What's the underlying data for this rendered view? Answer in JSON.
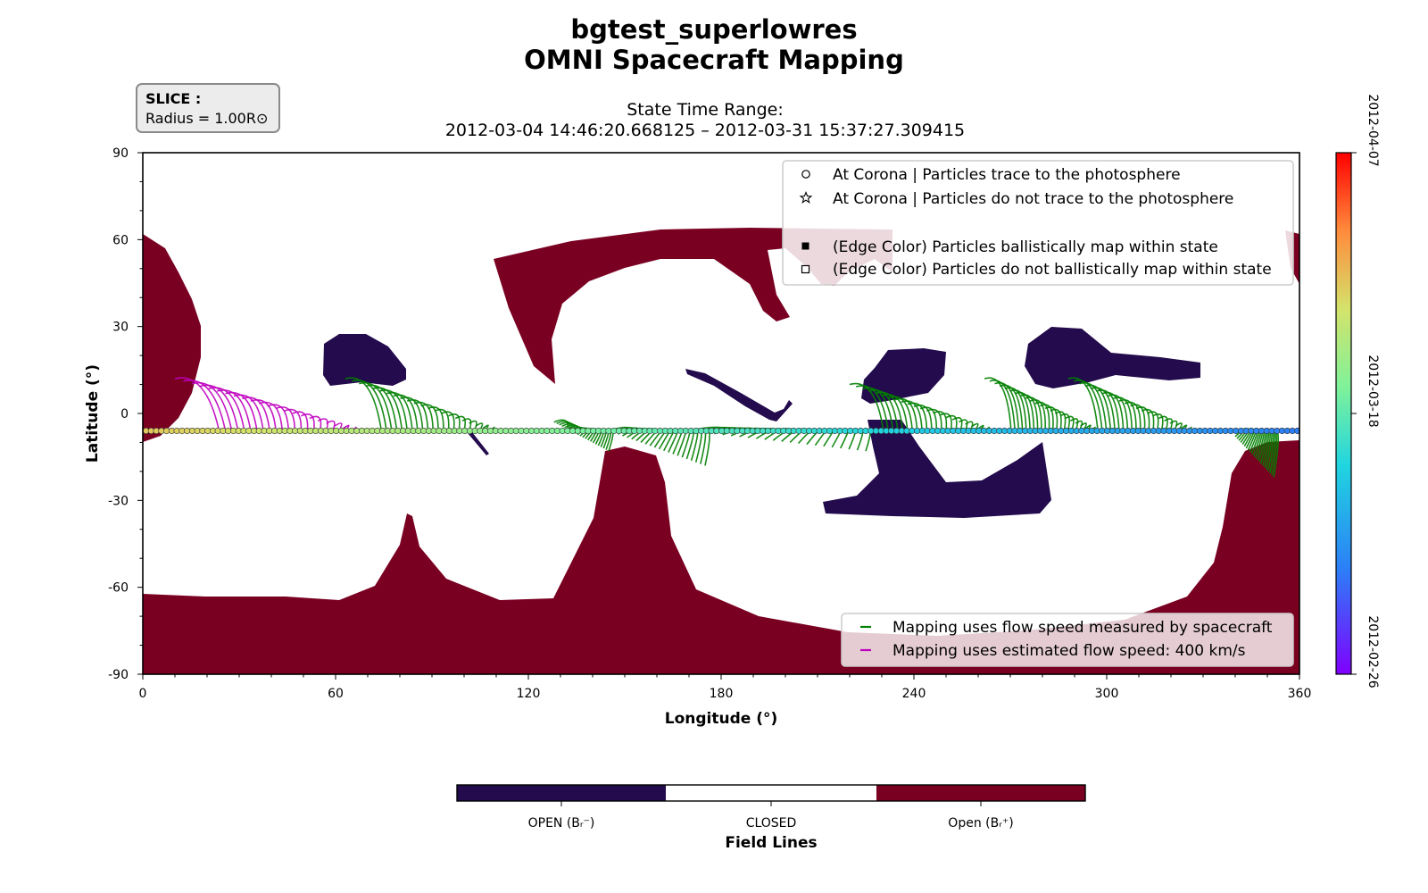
{
  "title_line1": "bgtest_superlowres",
  "title_line2": "OMNI Spacecraft Mapping",
  "subtitle_line1": "State Time Range:",
  "subtitle_line2": "2012-03-04 14:46:20.668125 – 2012-03-31 15:37:27.309415",
  "slice_box": {
    "heading": "SLICE :",
    "text": "Radius = 1.00R⊙"
  },
  "colors": {
    "open_negative": "#230b4d",
    "closed": "#ffffff",
    "open_positive": "#7a0022",
    "mapping_spacecraft": "#008000",
    "mapping_estimated": "#bf00bf"
  },
  "chart_data": {
    "type": "scatter",
    "xlabel": "Longitude (°)",
    "ylabel": "Latitude (°)",
    "xlim": [
      0,
      360
    ],
    "ylim": [
      -90,
      90
    ],
    "xticks": [
      0,
      60,
      120,
      180,
      240,
      300,
      360
    ],
    "yticks": [
      90,
      60,
      30,
      0,
      -30,
      -60,
      -90
    ],
    "grid": false,
    "marker_legend_position": "upper-right",
    "marker_legend": [
      {
        "marker": "circle",
        "label": "At Corona | Particles trace to the photosphere"
      },
      {
        "marker": "star",
        "label": "At Corona | Particles do not trace to the photosphere"
      },
      {
        "marker": "filled-square",
        "label": "(Edge Color) Particles ballistically map within state"
      },
      {
        "marker": "open-square",
        "label": "(Edge Color) Particles do not ballistically map within state"
      }
    ],
    "line_legend_position": "lower-right",
    "line_legend": [
      {
        "color": "#008000",
        "label": "Mapping uses flow speed measured by spacecraft"
      },
      {
        "color": "#bf00bf",
        "label": "Mapping uses estimated flow speed: 400 km/s"
      }
    ],
    "time_colorbar": {
      "colormap": "rainbow",
      "tick_labels": [
        "2012-04-07",
        "2012-03-18",
        "2012-02-26"
      ]
    },
    "field_lines_colorbar": {
      "label": "Field Lines",
      "categories": [
        "OPEN (Bᵣ⁻)",
        "CLOSED",
        "Open (Bᵣ⁺)"
      ]
    },
    "spacecraft_track": {
      "latitude": -6,
      "longitude_start": 0,
      "longitude_end": 360
    },
    "mapping_groups": [
      {
        "name": "spacecraft",
        "footpoint_lon": [
          63,
          108
        ],
        "footpoint_lat": [
          12,
          -6
        ]
      },
      {
        "name": "spacecraft",
        "footpoint_lon": [
          128,
          145
        ],
        "footpoint_lat": [
          -3,
          -13
        ]
      },
      {
        "name": "spacecraft",
        "footpoint_lon": [
          145,
          175
        ],
        "footpoint_lat": [
          -6,
          -18
        ]
      },
      {
        "name": "spacecraft",
        "footpoint_lon": [
          170,
          225
        ],
        "footpoint_lat": [
          -6,
          -13
        ]
      },
      {
        "name": "spacecraft",
        "footpoint_lon": [
          220,
          262
        ],
        "footpoint_lat": [
          10,
          -6
        ]
      },
      {
        "name": "spacecraft",
        "footpoint_lon": [
          262,
          295
        ],
        "footpoint_lat": [
          12,
          -6
        ]
      },
      {
        "name": "spacecraft",
        "footpoint_lon": [
          288,
          325
        ],
        "footpoint_lat": [
          12,
          -6
        ]
      },
      {
        "name": "spacecraft",
        "footpoint_lon": [
          340,
          352
        ],
        "footpoint_lat": [
          -8,
          -22
        ]
      },
      {
        "name": "estimated",
        "footpoint_lon": [
          10,
          65
        ],
        "footpoint_lat": [
          12,
          -6
        ]
      }
    ]
  }
}
